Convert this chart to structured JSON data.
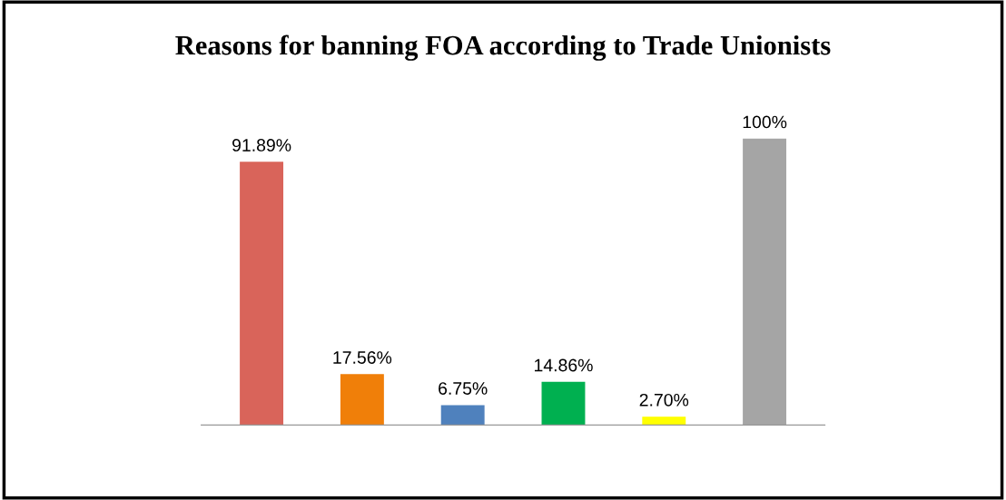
{
  "chart_data": {
    "type": "bar",
    "title": "Reasons for banning FOA according to Trade Unionists",
    "categories": [
      null,
      null,
      null,
      null,
      null,
      null
    ],
    "values": [
      91.89,
      17.56,
      6.75,
      14.86,
      2.7,
      100
    ],
    "value_labels": [
      "91.89%",
      "17.56%",
      "6.75%",
      "14.86%",
      "2.70%",
      "100%"
    ],
    "colors": [
      "#d9645a",
      "#f07f09",
      "#4f81bd",
      "#00b050",
      "#ffff00",
      "#a5a5a5"
    ],
    "grid": false,
    "legend": false
  }
}
